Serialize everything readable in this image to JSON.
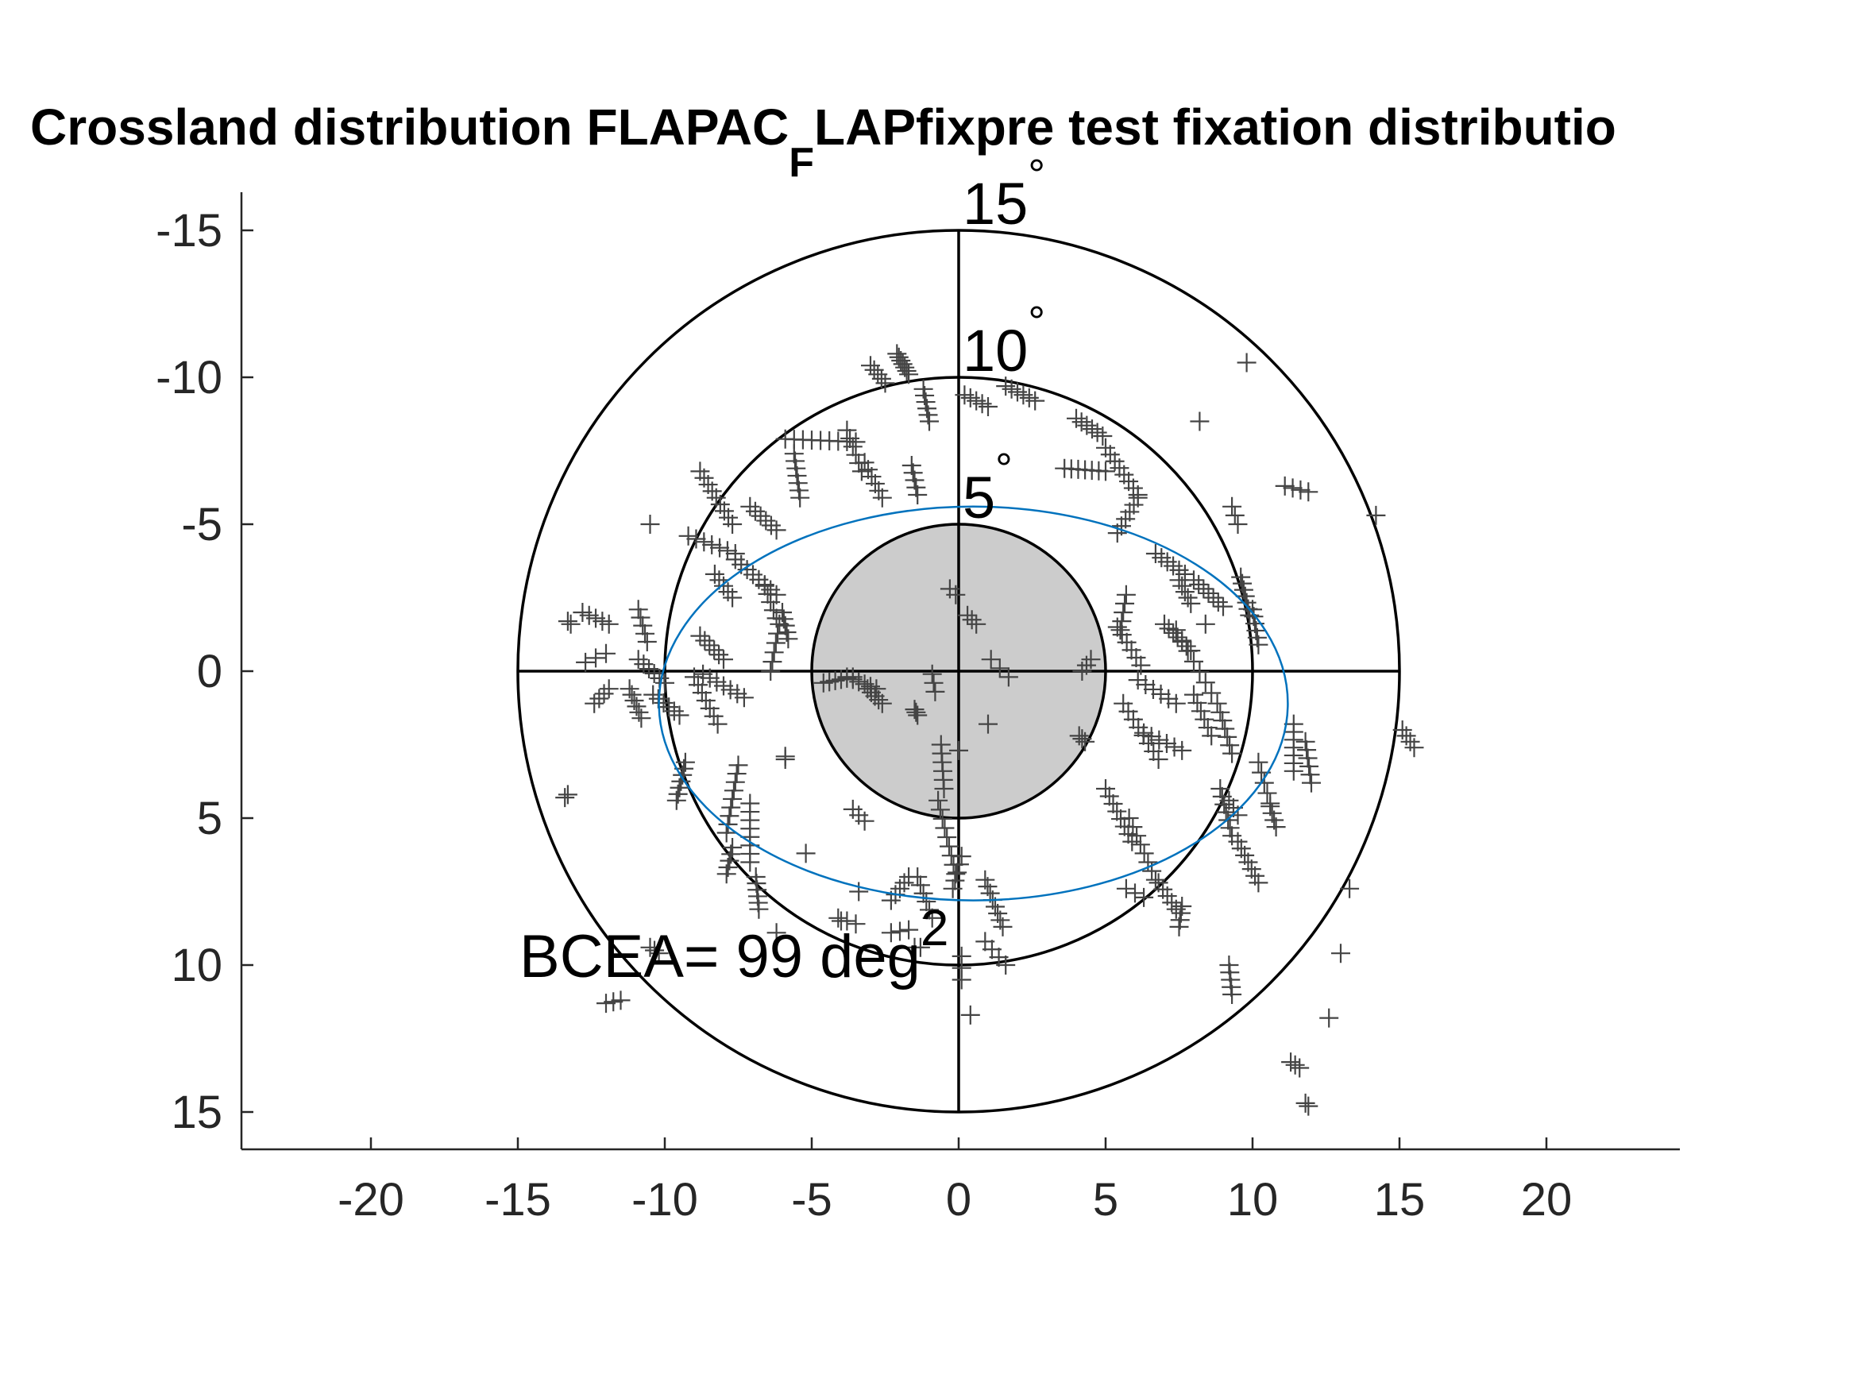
{
  "chart_data": {
    "type": "scatter",
    "title": "Crossland distribution FLAPAC",
    "title_subscript": "F",
    "title_rest": "LAPfixpre test fixation distributio",
    "xlim": [
      -24.0,
      24.5
    ],
    "ylim": [
      17.7,
      -17.7
    ],
    "y_reversed": true,
    "x_ticks": [
      -20,
      -15,
      -10,
      -5,
      0,
      5,
      10,
      15,
      20
    ],
    "x_tick_labels": [
      "-20",
      "-15",
      "-10",
      "-5",
      "0",
      "5",
      "10",
      "15",
      "20"
    ],
    "y_ticks": [
      -15,
      -10,
      -5,
      0,
      5,
      10,
      15
    ],
    "y_tick_labels": [
      "-15",
      "-10",
      "-5",
      "0",
      "5",
      "10",
      "15"
    ],
    "rings": [
      {
        "radius": 5,
        "label": "5",
        "degree_symbol": "°"
      },
      {
        "radius": 10,
        "label": "10",
        "degree_symbol": "°"
      },
      {
        "radius": 15,
        "label": "15",
        "degree_symbol": "°"
      }
    ],
    "central_disk_radius": 5,
    "bcea_ellipse": {
      "cx": 0.5,
      "cy": 1.1,
      "rx": 10.7,
      "ry": 6.7,
      "color": "#0072BD"
    },
    "bcea_label": {
      "text": "BCEA= 99 deg",
      "superscript": "2"
    },
    "marker": "+",
    "marker_color": "#444444",
    "clusters": [
      [
        -2.1,
        -10.8,
        -1.7,
        -10.1,
        7
      ],
      [
        -3.0,
        -10.4,
        -2.5,
        -9.8,
        5
      ],
      [
        1.6,
        -9.7,
        2.6,
        -9.2,
        6
      ],
      [
        -1.2,
        -9.6,
        -1.0,
        -8.5,
        6
      ],
      [
        0.2,
        -9.4,
        1.0,
        -9.0,
        5
      ],
      [
        4.0,
        -8.6,
        4.9,
        -8.0,
        6
      ],
      [
        -5.9,
        -7.9,
        -3.5,
        -7.8,
        9
      ],
      [
        -5.6,
        -7.4,
        -5.4,
        -5.9,
        7
      ],
      [
        -3.8,
        -8.2,
        -3.3,
        -6.8,
        6
      ],
      [
        -3.2,
        -7.1,
        -2.6,
        -5.9,
        6
      ],
      [
        -1.6,
        -7.0,
        -1.4,
        -6.0,
        5
      ],
      [
        3.6,
        -6.9,
        5.0,
        -6.8,
        7
      ],
      [
        5.0,
        -7.6,
        6.1,
        -6.0,
        8
      ],
      [
        6.1,
        -5.9,
        5.4,
        -4.7,
        6
      ],
      [
        -8.8,
        -6.8,
        -7.7,
        -5.0,
        9
      ],
      [
        -9.2,
        -4.6,
        -7.6,
        -4.0,
        7
      ],
      [
        -7.1,
        -5.6,
        -6.2,
        -4.8,
        6
      ],
      [
        -7.6,
        -3.8,
        -6.2,
        -2.6,
        8
      ],
      [
        -6.6,
        -2.9,
        -6.2,
        -1.8,
        5
      ],
      [
        -8.3,
        -3.3,
        -7.7,
        -2.5,
        5
      ],
      [
        -6.0,
        -2.0,
        -5.8,
        -1.1,
        5
      ],
      [
        -6.1,
        -1.6,
        -6.4,
        0.0,
        6
      ],
      [
        -10.9,
        -2.1,
        -10.6,
        -1.0,
        5
      ],
      [
        -10.9,
        -0.4,
        -10.0,
        0.4,
        6
      ],
      [
        -10.4,
        0.8,
        -9.5,
        1.5,
        6
      ],
      [
        -11.2,
        0.6,
        -10.8,
        1.6,
        6
      ],
      [
        -8.8,
        -1.2,
        -8.0,
        -0.4,
        6
      ],
      [
        -8.7,
        0.1,
        -7.3,
        0.9,
        7
      ],
      [
        -9.0,
        0.2,
        -8.2,
        1.8,
        7
      ],
      [
        -12.8,
        -2.0,
        -11.9,
        -1.6,
        5
      ],
      [
        -12.4,
        1.1,
        -11.9,
        0.6,
        4
      ],
      [
        -4.6,
        0.4,
        -3.6,
        0.2,
        6
      ],
      [
        -3.8,
        0.2,
        -2.8,
        0.6,
        6
      ],
      [
        -3.1,
        0.6,
        -2.6,
        1.1,
        5
      ],
      [
        -1.5,
        1.3,
        -1.4,
        1.5,
        3
      ],
      [
        -0.9,
        0.1,
        -0.8,
        0.7,
        3
      ],
      [
        0.3,
        -1.9,
        0.6,
        -1.6,
        3
      ],
      [
        -0.3,
        -2.8,
        -0.1,
        -2.6,
        2
      ],
      [
        -0.6,
        2.5,
        -0.5,
        4.0,
        6
      ],
      [
        -0.7,
        4.4,
        -0.1,
        6.9,
        9
      ],
      [
        0.1,
        6.3,
        -0.2,
        7.4,
        5
      ],
      [
        -1.4,
        7.0,
        -0.9,
        8.4,
        6
      ],
      [
        -1.7,
        7.0,
        -2.3,
        7.8,
        5
      ],
      [
        0.9,
        7.1,
        1.5,
        8.7,
        8
      ],
      [
        0.9,
        9.2,
        1.6,
        10.0,
        4
      ],
      [
        0.1,
        9.7,
        0.1,
        10.5,
        3
      ],
      [
        -9.3,
        3.1,
        -9.6,
        4.4,
        7
      ],
      [
        -7.5,
        3.2,
        -7.9,
        5.5,
        9
      ],
      [
        -7.1,
        4.5,
        -7.1,
        6.5,
        8
      ],
      [
        -7.7,
        6.0,
        -7.9,
        6.9,
        5
      ],
      [
        -6.9,
        7.0,
        -6.8,
        8.1,
        6
      ],
      [
        -3.2,
        5.1,
        -3.6,
        4.7,
        3
      ],
      [
        -3.5,
        8.6,
        -4.1,
        8.4,
        3
      ],
      [
        4.1,
        2.2,
        4.3,
        2.4,
        3
      ],
      [
        1.1,
        -0.4,
        1.7,
        0.2,
        3
      ],
      [
        4.2,
        0.0,
        4.5,
        -0.4,
        3
      ],
      [
        5.7,
        -2.6,
        5.5,
        -1.4,
        5
      ],
      [
        5.4,
        -1.5,
        6.2,
        -0.2,
        6
      ],
      [
        6.1,
        0.3,
        7.4,
        1.1,
        6
      ],
      [
        5.6,
        1.1,
        6.8,
        3.0,
        8
      ],
      [
        6.3,
        2.1,
        7.6,
        2.7,
        6
      ],
      [
        7.0,
        -1.6,
        7.9,
        -0.7,
        7
      ],
      [
        7.4,
        -1.4,
        8.8,
        1.1,
        8
      ],
      [
        8.0,
        0.8,
        8.6,
        2.2,
        6
      ],
      [
        8.9,
        1.4,
        9.3,
        2.8,
        6
      ],
      [
        6.7,
        -4.0,
        7.7,
        -3.3,
        6
      ],
      [
        7.5,
        -3.1,
        7.9,
        -2.3,
        5
      ],
      [
        8.0,
        -3.1,
        9.0,
        -2.2,
        7
      ],
      [
        9.6,
        -3.2,
        9.9,
        -1.9,
        7
      ],
      [
        10.0,
        -2.1,
        10.2,
        -0.9,
        6
      ],
      [
        5.0,
        4.0,
        5.9,
        5.8,
        8
      ],
      [
        5.8,
        5.0,
        6.7,
        7.1,
        8
      ],
      [
        6.8,
        7.2,
        7.4,
        8.1,
        5
      ],
      [
        7.6,
        8.0,
        7.5,
        8.7,
        4
      ],
      [
        5.7,
        7.4,
        6.3,
        7.7,
        3
      ],
      [
        8.9,
        4.0,
        9.3,
        5.6,
        7
      ],
      [
        9.5,
        5.8,
        10.2,
        7.2,
        7
      ],
      [
        9.2,
        4.4,
        9.5,
        4.9,
        3
      ],
      [
        10.2,
        3.1,
        10.6,
        4.5,
        5
      ],
      [
        10.6,
        4.6,
        10.8,
        5.3,
        4
      ],
      [
        11.4,
        1.8,
        11.4,
        3.4,
        7
      ],
      [
        11.8,
        2.4,
        12.0,
        3.8,
        6
      ],
      [
        9.2,
        10.0,
        9.3,
        11.0,
        5
      ],
      [
        11.1,
        -6.3,
        11.9,
        -6.1,
        4
      ],
      [
        15.1,
        2.0,
        15.5,
        2.6,
        4
      ],
      [
        11.3,
        13.3,
        11.6,
        13.5,
        3
      ],
      [
        11.8,
        14.7,
        11.9,
        14.8,
        2
      ],
      [
        -12.7,
        -0.3,
        -12.0,
        -0.6,
        3
      ],
      [
        -13.4,
        4.3,
        -13.3,
        4.2,
        2
      ],
      [
        -13.3,
        -1.7,
        -13.2,
        -1.6,
        2
      ],
      [
        -12.0,
        11.3,
        -11.5,
        11.2,
        3
      ],
      [
        -10.5,
        9.4,
        -10.2,
        9.6,
        3
      ],
      [
        -5.9,
        2.9,
        -5.9,
        3.0,
        2
      ],
      [
        -2.3,
        8.9,
        -1.7,
        8.8,
        3
      ],
      [
        -1.5,
        9.4,
        -1.3,
        9.4,
        2
      ],
      [
        9.3,
        -5.6,
        9.5,
        -5.0,
        3
      ]
    ],
    "singles": [
      [
        -10.5,
        -5.0
      ],
      [
        9.8,
        -10.5
      ],
      [
        8.2,
        -8.5
      ],
      [
        14.2,
        -5.3
      ],
      [
        13.3,
        7.4
      ],
      [
        13.0,
        9.6
      ],
      [
        12.6,
        11.8
      ],
      [
        0.4,
        11.7
      ],
      [
        -5.2,
        6.2
      ],
      [
        -3.4,
        7.5
      ],
      [
        -6.2,
        8.9
      ],
      [
        -4.0,
        8.5
      ],
      [
        0.0,
        2.7
      ],
      [
        1.0,
        1.8
      ],
      [
        8.4,
        -1.6
      ]
    ]
  }
}
